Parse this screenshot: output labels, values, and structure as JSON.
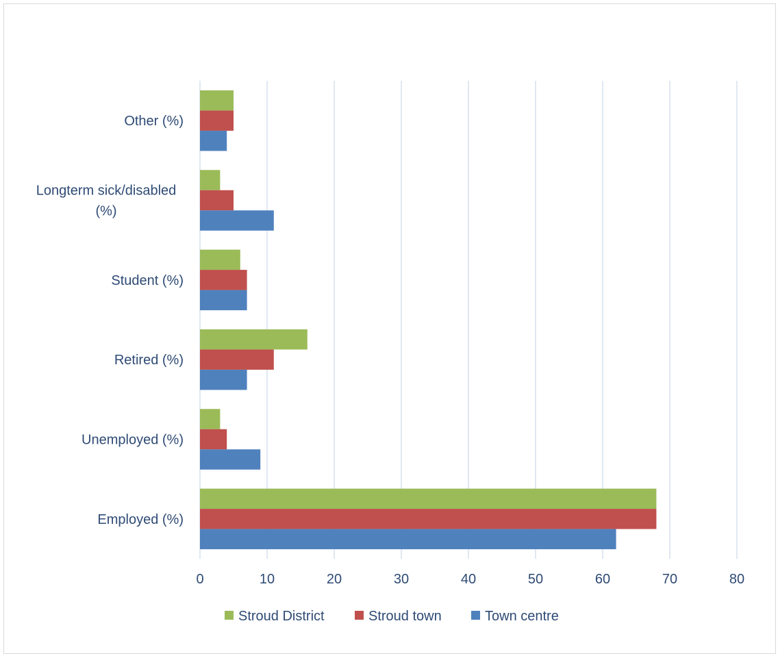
{
  "chart_data": {
    "type": "bar",
    "orientation": "horizontal",
    "categories": [
      "Employed (%)",
      "Unemployed (%)",
      "Retired (%)",
      "Student (%)",
      "Longterm sick/disabled (%)",
      "Other (%)"
    ],
    "category_label_lines": [
      [
        "Employed (%)"
      ],
      [
        "Unemployed (%)"
      ],
      [
        "Retired (%)"
      ],
      [
        "Student (%)"
      ],
      [
        "Longterm sick/disabled",
        "(%)"
      ],
      [
        "Other (%)"
      ]
    ],
    "series": [
      {
        "name": "Stroud District",
        "color": "#9bbb59",
        "values": [
          68,
          3,
          16,
          6,
          3,
          5
        ]
      },
      {
        "name": "Stroud town",
        "color": "#c0504d",
        "values": [
          68,
          4,
          11,
          7,
          5,
          5
        ]
      },
      {
        "name": "Town centre",
        "color": "#4f81bd",
        "values": [
          62,
          9,
          7,
          7,
          11,
          4
        ]
      }
    ],
    "xlim": [
      0,
      80
    ],
    "x_ticks": [
      0,
      10,
      20,
      30,
      40,
      50,
      60,
      70,
      80
    ],
    "title": "",
    "xlabel": "",
    "ylabel": "",
    "grid": true,
    "legend_position": "bottom"
  }
}
